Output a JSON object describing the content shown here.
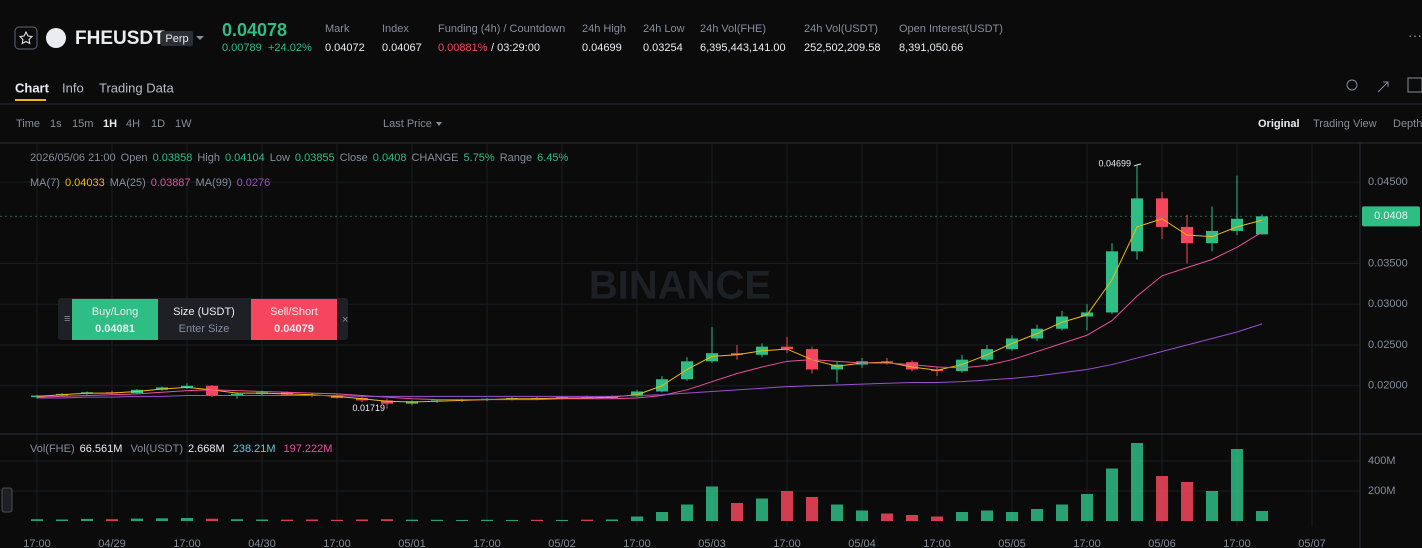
{
  "header": {
    "symbol": "FHEUSDT",
    "tag": "Perp",
    "price": "0.04078",
    "change": "0.00789",
    "change_pct": "+24.02%",
    "stats": [
      {
        "label": "Mark",
        "value": "0.04072"
      },
      {
        "label": "Index",
        "value": "0.04067"
      },
      {
        "label": "Funding (4h) / Countdown",
        "value": "0.00881%",
        "countdown": "/ 03:29:00"
      },
      {
        "label": "24h High",
        "value": "0.04699"
      },
      {
        "label": "24h Low",
        "value": "0.03254"
      },
      {
        "label": "24h Vol(FHE)",
        "value": "6,395,443,141.00"
      },
      {
        "label": "24h Vol(USDT)",
        "value": "252,502,209.58"
      },
      {
        "label": "Open Interest(USDT)",
        "value": "8,391,050.66"
      }
    ]
  },
  "tabs": [
    "Chart",
    "Info",
    "Trading Data"
  ],
  "toolbar": {
    "intervals": [
      "Time",
      "1s",
      "15m",
      "1H",
      "4H",
      "1D",
      "1W"
    ],
    "price_type": "Last Price",
    "views": [
      "Original",
      "Trading View",
      "Depth"
    ]
  },
  "legend": {
    "date": "2026/05/06 21:00",
    "open": "Open",
    "high": "High",
    "low": "Low",
    "close": "Close",
    "change_label": "CHANGE",
    "change": "5.75%",
    "range_label": "Range",
    "range": "6.45%"
  },
  "order_panel": {
    "buy": "Buy/Long",
    "buy_price": "0.04081",
    "size": "Size (USDT)",
    "placeholder": "Enter Size",
    "sell": "Sell/Short",
    "sell_price": "0.04079"
  },
  "watermark": "BINANCE",
  "volume_legend": [
    {
      "name": "Vol(FHE)",
      "value": "66.561M"
    },
    {
      "name": "Vol(USDT)",
      "value": "2.668M"
    },
    {
      "value": "238.21M"
    },
    {
      "value": "197.222M"
    }
  ],
  "chart_data": {
    "type": "candlestick",
    "open": [
      0.0186,
      0.0188,
      0.019,
      0.0192,
      0.0191,
      0.0195,
      0.0198,
      0.02,
      0.0188,
      0.019,
      0.0192,
      0.0189,
      0.0188,
      0.0185,
      0.0182,
      0.0178,
      0.0181,
      0.0182,
      0.0183,
      0.0184,
      0.0185,
      0.0184,
      0.0186,
      0.0185,
      0.0187,
      0.0193,
      0.0208,
      0.023,
      0.024,
      0.0238,
      0.0248,
      0.0245,
      0.022,
      0.0226,
      0.023,
      0.0229,
      0.022,
      0.0218,
      0.0232,
      0.0245,
      0.0258,
      0.027,
      0.0285,
      0.029,
      0.0365,
      0.043,
      0.0395,
      0.0375,
      0.039,
      0.03858
    ],
    "high": [
      0.0189,
      0.0191,
      0.0193,
      0.0194,
      0.0196,
      0.0199,
      0.0203,
      0.0201,
      0.0192,
      0.0194,
      0.0193,
      0.0191,
      0.019,
      0.0187,
      0.0184,
      0.0182,
      0.0183,
      0.0184,
      0.0185,
      0.0186,
      0.0187,
      0.0187,
      0.0188,
      0.0188,
      0.0195,
      0.0212,
      0.0235,
      0.0272,
      0.025,
      0.0252,
      0.026,
      0.0248,
      0.023,
      0.0234,
      0.0234,
      0.0231,
      0.0223,
      0.0238,
      0.025,
      0.0262,
      0.0275,
      0.0292,
      0.03,
      0.0375,
      0.04699,
      0.0438,
      0.041,
      0.042,
      0.0458,
      0.04104
    ],
    "low": [
      0.0184,
      0.0187,
      0.0189,
      0.019,
      0.019,
      0.0194,
      0.0196,
      0.0186,
      0.0184,
      0.0188,
      0.0188,
      0.0186,
      0.0184,
      0.018,
      0.01719,
      0.0176,
      0.0179,
      0.018,
      0.0181,
      0.0182,
      0.0183,
      0.0183,
      0.0184,
      0.0184,
      0.0186,
      0.0192,
      0.0206,
      0.0228,
      0.0232,
      0.0235,
      0.024,
      0.0215,
      0.0204,
      0.0222,
      0.0226,
      0.0218,
      0.0212,
      0.0216,
      0.023,
      0.0243,
      0.0255,
      0.0268,
      0.0268,
      0.0288,
      0.0355,
      0.038,
      0.035,
      0.0365,
      0.0385,
      0.03855
    ],
    "close": [
      0.0188,
      0.019,
      0.0192,
      0.0191,
      0.0195,
      0.0198,
      0.02,
      0.0188,
      0.019,
      0.0192,
      0.0189,
      0.0188,
      0.0185,
      0.0182,
      0.0178,
      0.0181,
      0.0182,
      0.0183,
      0.0184,
      0.0185,
      0.0184,
      0.0186,
      0.0185,
      0.0187,
      0.0193,
      0.0208,
      0.023,
      0.024,
      0.0238,
      0.0248,
      0.0245,
      0.022,
      0.0226,
      0.023,
      0.0229,
      0.022,
      0.0218,
      0.0232,
      0.0245,
      0.0258,
      0.027,
      0.0285,
      0.029,
      0.0365,
      0.043,
      0.0395,
      0.0375,
      0.039,
      0.0405,
      0.0408
    ],
    "series": [
      {
        "name": "MA(7)",
        "color": "#f0b90b",
        "values": [
          0.0187,
          0.0189,
          0.0191,
          0.0191,
          0.0193,
          0.0196,
          0.0198,
          0.0195,
          0.0191,
          0.0191,
          0.019,
          0.0189,
          0.0187,
          0.0184,
          0.0181,
          0.018,
          0.0181,
          0.0182,
          0.0183,
          0.0184,
          0.0184,
          0.0185,
          0.0185,
          0.0186,
          0.0189,
          0.02,
          0.022,
          0.0236,
          0.0238,
          0.0243,
          0.0245,
          0.0232,
          0.0224,
          0.0228,
          0.0229,
          0.0223,
          0.0219,
          0.0226,
          0.0238,
          0.0252,
          0.0264,
          0.0278,
          0.0287,
          0.033,
          0.0395,
          0.0405,
          0.0385,
          0.0383,
          0.0395,
          0.04033
        ]
      },
      {
        "name": "MA(25)",
        "color": "#e8509a",
        "values": [
          0.0186,
          0.0187,
          0.0188,
          0.0189,
          0.019,
          0.0192,
          0.0194,
          0.0195,
          0.0194,
          0.0193,
          0.0192,
          0.0191,
          0.019,
          0.0188,
          0.0186,
          0.0184,
          0.0183,
          0.0183,
          0.0183,
          0.0183,
          0.0183,
          0.0184,
          0.0184,
          0.0184,
          0.0185,
          0.0188,
          0.0195,
          0.0205,
          0.0215,
          0.0223,
          0.023,
          0.0232,
          0.023,
          0.0228,
          0.0228,
          0.0226,
          0.0223,
          0.0222,
          0.0225,
          0.0232,
          0.0242,
          0.0252,
          0.0262,
          0.028,
          0.031,
          0.0335,
          0.0345,
          0.0355,
          0.037,
          0.03887
        ]
      },
      {
        "name": "MA(99)",
        "color": "#9a4fd0",
        "values": [
          0.0185,
          0.0185,
          0.0186,
          0.0186,
          0.0187,
          0.0187,
          0.0188,
          0.0188,
          0.0188,
          0.0188,
          0.0188,
          0.0188,
          0.0188,
          0.0187,
          0.0187,
          0.0187,
          0.0187,
          0.0187,
          0.0187,
          0.0187,
          0.0187,
          0.0187,
          0.0187,
          0.0187,
          0.0188,
          0.0189,
          0.0191,
          0.0193,
          0.0195,
          0.0197,
          0.0199,
          0.02,
          0.0201,
          0.0202,
          0.0203,
          0.0204,
          0.0204,
          0.0205,
          0.0207,
          0.0209,
          0.0212,
          0.0216,
          0.022,
          0.0226,
          0.0234,
          0.0242,
          0.025,
          0.0258,
          0.0266,
          0.0276
        ]
      }
    ],
    "up_color": "#2ebd85",
    "down_color": "#f6465d",
    "xlim": [
      -1.48,
      52.92
    ],
    "xticks": [
      {
        "value": 0,
        "label": "17:00"
      },
      {
        "value": 3,
        "label": "04/29"
      },
      {
        "value": 6,
        "label": "17:00"
      },
      {
        "value": 9,
        "label": "04/30"
      },
      {
        "value": 12,
        "label": "17:00"
      },
      {
        "value": 15,
        "label": "05/01"
      },
      {
        "value": 18,
        "label": "17:00"
      },
      {
        "value": 21,
        "label": "05/02"
      },
      {
        "value": 24,
        "label": "17:00"
      },
      {
        "value": 27,
        "label": "05/03"
      },
      {
        "value": 30,
        "label": "17:00"
      },
      {
        "value": 33,
        "label": "05/04"
      },
      {
        "value": 36,
        "label": "17:00"
      },
      {
        "value": 39,
        "label": "05/05"
      },
      {
        "value": 42,
        "label": "17:00"
      },
      {
        "value": 45,
        "label": "05/06"
      },
      {
        "value": 48,
        "label": "17:00"
      },
      {
        "value": 51,
        "label": "05/07"
      }
    ],
    "ylim": [
      0.0142,
      0.0498
    ],
    "yticks": [
      {
        "value": 0.045,
        "label": "0.04500"
      },
      {
        "value": 0.035,
        "label": "0.03500"
      },
      {
        "value": 0.03,
        "label": "0.03000"
      },
      {
        "value": 0.025,
        "label": "0.02500"
      },
      {
        "value": 0.02,
        "label": "0.02000"
      }
    ],
    "volumes": [
      12000000,
      10000000,
      14000000,
      12000000,
      16000000,
      18000000,
      20000000,
      15000000,
      12000000,
      10000000,
      9000000,
      10000000,
      8000000,
      10000000,
      12000000,
      9000000,
      8000000,
      7000000,
      8000000,
      7000000,
      8000000,
      7000000,
      9000000,
      10000000,
      30000000,
      60000000,
      110000000,
      230000000,
      120000000,
      150000000,
      200000000,
      160000000,
      110000000,
      70000000,
      50000000,
      40000000,
      30000000,
      60000000,
      70000000,
      60000000,
      80000000,
      110000000,
      180000000,
      350000000,
      520000000,
      300000000,
      260000000,
      200000000,
      480000000,
      66561000
    ],
    "vol_ylim": [
      0,
      560000000
    ],
    "vol_yticks": [
      {
        "value": 400000000,
        "label": "400M"
      },
      {
        "value": 200000000,
        "label": "200M"
      }
    ],
    "grid": true
  }
}
